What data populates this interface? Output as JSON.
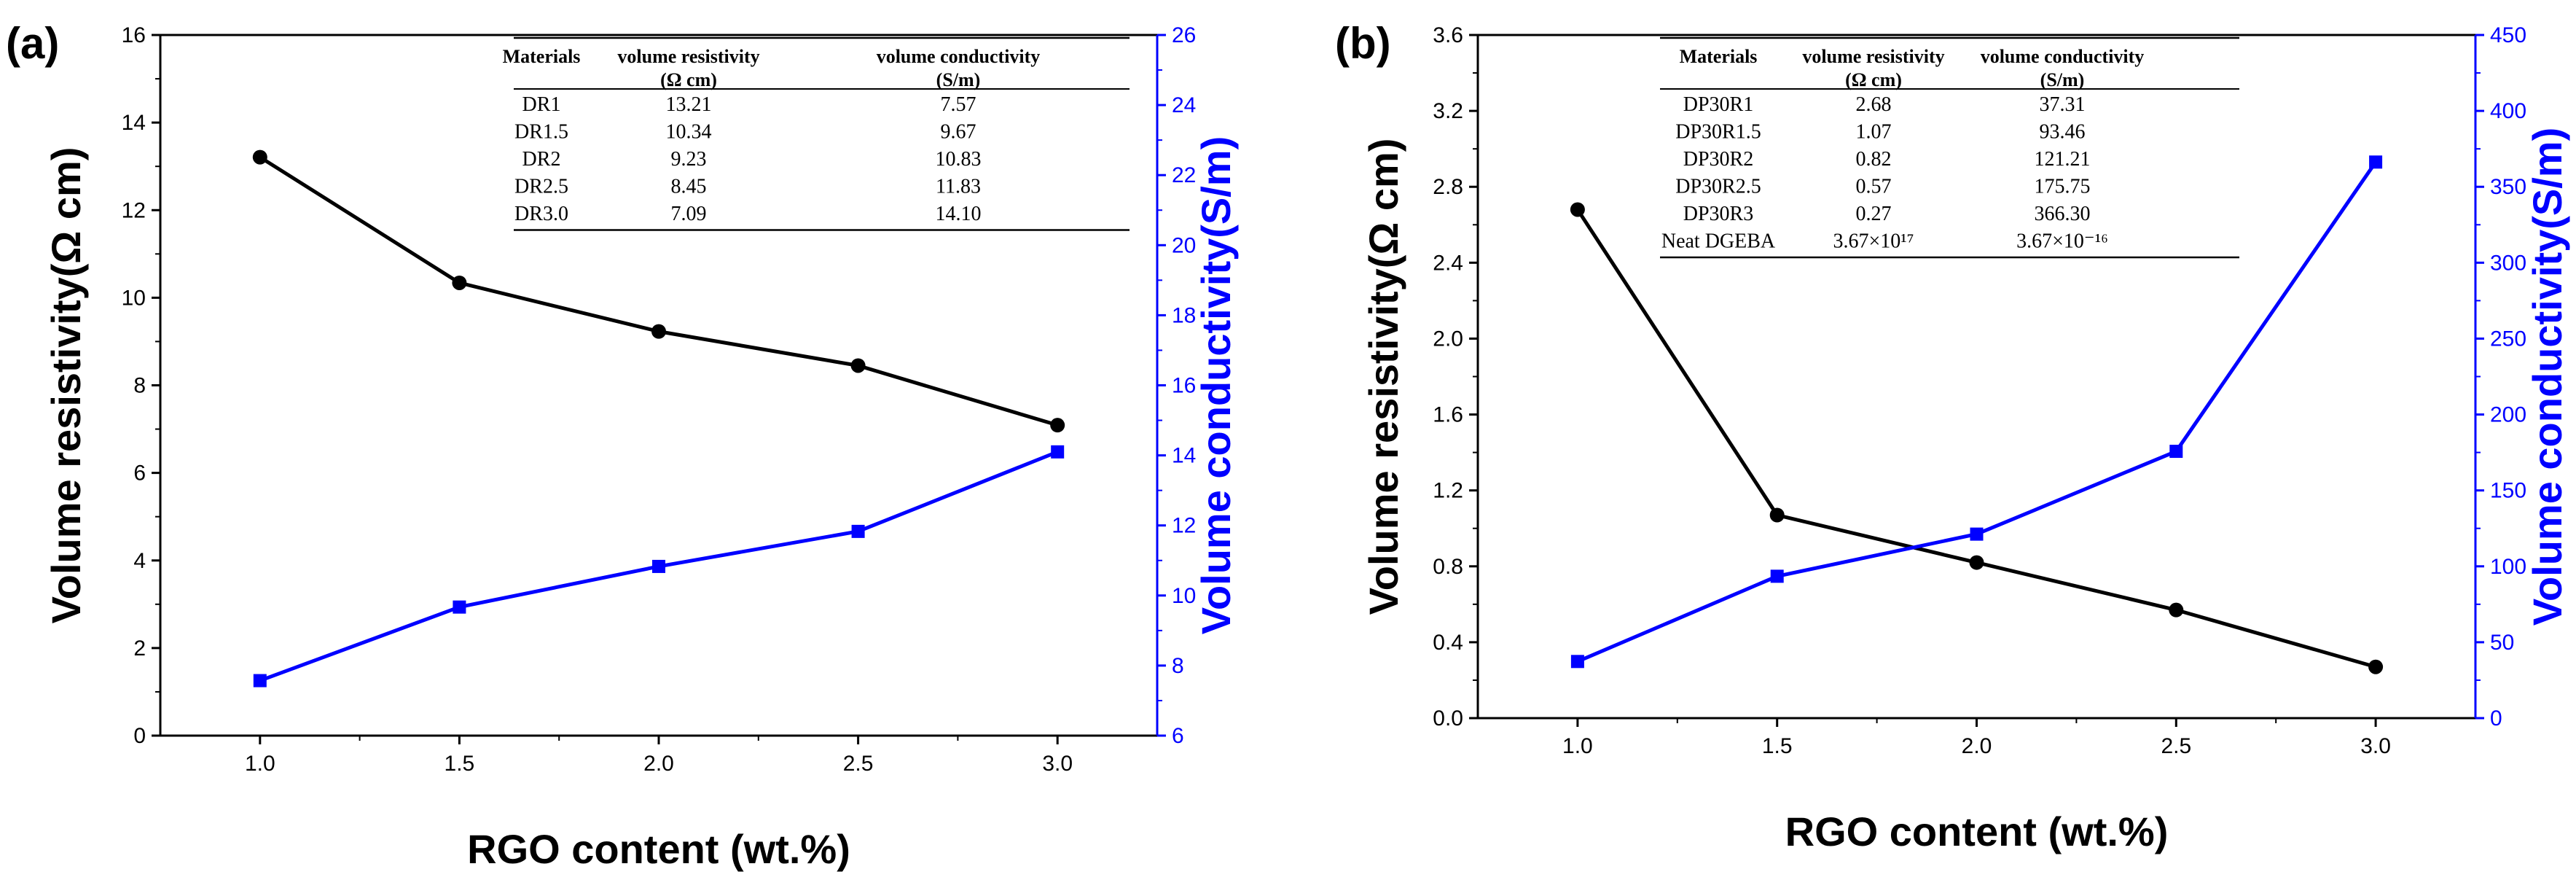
{
  "chart_data": [
    {
      "panel": "(a)",
      "type": "line",
      "xlabel": "RGO content (wt.%)",
      "ylabel": "Volume resistivity(Ω cm)",
      "y2label": "Volume conductivity(S/m)",
      "x": [
        1.0,
        1.5,
        2.0,
        2.5,
        3.0
      ],
      "xlim": [
        0.75,
        3.25
      ],
      "xticks": [
        "1.0",
        "1.5",
        "2.0",
        "2.5",
        "3.0"
      ],
      "ylim": [
        0,
        16
      ],
      "yticks": [
        "0",
        "2",
        "4",
        "6",
        "8",
        "10",
        "12",
        "14",
        "16"
      ],
      "y2lim": [
        6,
        26
      ],
      "y2ticks": [
        "6",
        "8",
        "10",
        "12",
        "14",
        "16",
        "18",
        "20",
        "22",
        "24",
        "26"
      ],
      "series": [
        {
          "name": "volume resistivity",
          "axis": "left",
          "color": "#000000",
          "marker": "circle",
          "values": [
            13.21,
            10.34,
            9.23,
            8.45,
            7.09
          ]
        },
        {
          "name": "volume conductivity",
          "axis": "right",
          "color": "#0000ff",
          "marker": "square",
          "values": [
            7.57,
            9.67,
            10.83,
            11.83,
            14.1
          ]
        }
      ],
      "table": {
        "headers": [
          [
            "Materials"
          ],
          [
            "volume resistivity",
            "(Ω cm)"
          ],
          [
            "volume conductivity",
            "(S/m)"
          ]
        ],
        "rows": [
          [
            "DR1",
            "13.21",
            "7.57"
          ],
          [
            "DR1.5",
            "10.34",
            "9.67"
          ],
          [
            "DR2",
            "9.23",
            "10.83"
          ],
          [
            "DR2.5",
            "8.45",
            "11.83"
          ],
          [
            "DR3.0",
            "7.09",
            "14.10"
          ]
        ]
      }
    },
    {
      "panel": "(b)",
      "type": "line",
      "xlabel": "RGO content (wt.%)",
      "ylabel": "Volume resistivity(Ω cm)",
      "y2label": "Volume conductivity(S/m)",
      "x": [
        1.0,
        1.5,
        2.0,
        2.5,
        3.0
      ],
      "xlim": [
        0.75,
        3.25
      ],
      "xticks": [
        "1.0",
        "1.5",
        "2.0",
        "2.5",
        "3.0"
      ],
      "ylim": [
        0,
        3.6
      ],
      "yticks": [
        "0.0",
        "0.4",
        "0.8",
        "1.2",
        "1.6",
        "2.0",
        "2.4",
        "2.8",
        "3.2",
        "3.6"
      ],
      "y2lim": [
        0,
        450
      ],
      "y2ticks": [
        "0",
        "50",
        "100",
        "150",
        "200",
        "250",
        "300",
        "350",
        "400",
        "450"
      ],
      "series": [
        {
          "name": "volume resistivity",
          "axis": "left",
          "color": "#000000",
          "marker": "circle",
          "values": [
            2.68,
            1.07,
            0.82,
            0.57,
            0.27
          ]
        },
        {
          "name": "volume conductivity",
          "axis": "right",
          "color": "#0000ff",
          "marker": "square",
          "values": [
            37.31,
            93.46,
            121.21,
            175.75,
            366.3
          ]
        }
      ],
      "table": {
        "headers": [
          [
            "Materials"
          ],
          [
            "volume resistivity",
            "(Ω cm)"
          ],
          [
            "volume conductivity",
            "(S/m)"
          ]
        ],
        "rows": [
          [
            "DP30R1",
            "2.68",
            "37.31"
          ],
          [
            "DP30R1.5",
            "1.07",
            "93.46"
          ],
          [
            "DP30R2",
            "0.82",
            "121.21"
          ],
          [
            "DP30R2.5",
            "0.57",
            "175.75"
          ],
          [
            "DP30R3",
            "0.27",
            "366.30"
          ],
          [
            "Neat DGEBA",
            "3.67×10¹⁷",
            "3.67×10⁻¹⁶"
          ]
        ]
      }
    }
  ]
}
